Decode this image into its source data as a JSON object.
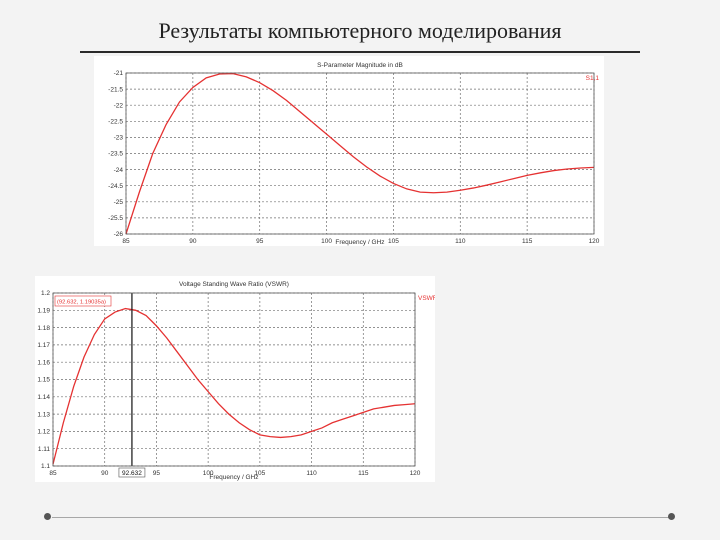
{
  "slide": {
    "title": "Результаты компьютерного моделирования"
  },
  "chart_data": [
    {
      "type": "line",
      "title": "S-Parameter Magnitude in dB",
      "xlabel": "Frequency / GHz",
      "ylabel": "",
      "xlim": [
        85,
        120
      ],
      "ylim": [
        -26,
        -21
      ],
      "xticks": [
        85,
        90,
        95,
        100,
        105,
        110,
        115,
        120
      ],
      "yticks": [
        -21,
        -21.5,
        -22,
        -22.5,
        -23,
        -23.5,
        -24,
        -24.5,
        -25,
        -25.5,
        -26
      ],
      "tick_labels_x": [
        "85",
        "90",
        "95",
        "100",
        "105",
        "110",
        "115",
        "120"
      ],
      "tick_labels_y": [
        "-21",
        "-21.5",
        "-22",
        "-22.5",
        "-23",
        "-23.5",
        "-24",
        "-24.5",
        "-25",
        "-25.5",
        "-26"
      ],
      "grid": true,
      "legend": "top-right",
      "series": [
        {
          "name": "S1,1",
          "color": "#e53232",
          "x": [
            85,
            86,
            87,
            88,
            89,
            90,
            91,
            92,
            93,
            94,
            95,
            96,
            97,
            98,
            99,
            100,
            101,
            102,
            103,
            104,
            105,
            106,
            107,
            108,
            109,
            110,
            111,
            112,
            113,
            114,
            115,
            116,
            117,
            118,
            119,
            120
          ],
          "y": [
            -26,
            -24.7,
            -23.5,
            -22.6,
            -21.9,
            -21.45,
            -21.15,
            -21.03,
            -21.02,
            -21.12,
            -21.3,
            -21.55,
            -21.85,
            -22.2,
            -22.55,
            -22.9,
            -23.25,
            -23.6,
            -23.92,
            -24.2,
            -24.43,
            -24.6,
            -24.7,
            -24.72,
            -24.7,
            -24.64,
            -24.57,
            -24.48,
            -24.38,
            -24.28,
            -24.18,
            -24.1,
            -24.03,
            -23.98,
            -23.95,
            -23.93
          ]
        }
      ]
    },
    {
      "type": "line",
      "title": "Voltage Standing Wave Ratio (VSWR)",
      "xlabel": "Frequency / GHz",
      "ylabel": "",
      "xlim": [
        85,
        120
      ],
      "ylim": [
        1.1,
        1.2
      ],
      "xticks": [
        85,
        90,
        95,
        100,
        105,
        110,
        115,
        120
      ],
      "yticks": [
        1.1,
        1.11,
        1.12,
        1.13,
        1.14,
        1.15,
        1.16,
        1.17,
        1.18,
        1.19,
        1.2
      ],
      "tick_labels_x": [
        "85",
        "90",
        "95",
        "100",
        "105",
        "110",
        "115",
        "120"
      ],
      "tick_labels_y": [
        "1.1",
        "1.11",
        "1.12",
        "1.13",
        "1.14",
        "1.15",
        "1.16",
        "1.17",
        "1.18",
        "1.19",
        "1.2"
      ],
      "grid": true,
      "legend": "top-right",
      "marker": {
        "x": 92.632,
        "label": "92.632",
        "readout": "(92.632, 1.19035a)"
      },
      "series": [
        {
          "name": "VSWR",
          "color": "#e53232",
          "x": [
            85,
            86,
            87,
            88,
            89,
            90,
            91,
            92,
            93,
            94,
            95,
            96,
            97,
            98,
            99,
            100,
            101,
            102,
            103,
            104,
            105,
            106,
            107,
            108,
            109,
            110,
            111,
            112,
            113,
            114,
            115,
            116,
            117,
            118,
            119,
            120
          ],
          "y": [
            1.101,
            1.125,
            1.146,
            1.163,
            1.176,
            1.185,
            1.189,
            1.191,
            1.19,
            1.187,
            1.181,
            1.174,
            1.166,
            1.158,
            1.15,
            1.143,
            1.136,
            1.13,
            1.125,
            1.121,
            1.118,
            1.117,
            1.1165,
            1.117,
            1.118,
            1.12,
            1.122,
            1.125,
            1.127,
            1.129,
            1.131,
            1.133,
            1.134,
            1.135,
            1.1355,
            1.136
          ]
        }
      ]
    }
  ]
}
